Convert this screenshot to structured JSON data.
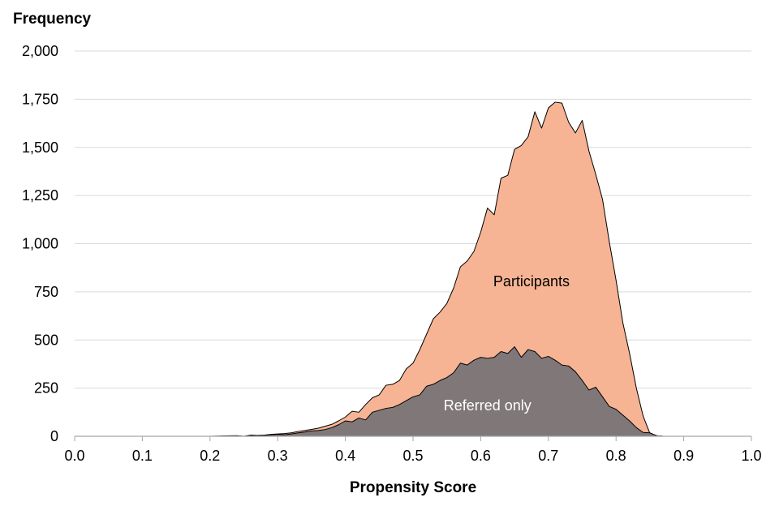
{
  "chart_data": {
    "type": "area",
    "ylabel": "Frequency",
    "xlabel": "Propensity Score",
    "xlim": [
      0.0,
      1.0
    ],
    "ylim": [
      0,
      2000
    ],
    "x_ticks": [
      "0.0",
      "0.1",
      "0.2",
      "0.3",
      "0.4",
      "0.5",
      "0.6",
      "0.7",
      "0.8",
      "0.9",
      "1.0"
    ],
    "y_ticks": [
      "0",
      "250",
      "500",
      "750",
      "1,000",
      "1,250",
      "1,500",
      "1,750",
      "2,000"
    ],
    "grid": true,
    "series": [
      {
        "name": "Participants",
        "color": "#f6b494",
        "label_color": "#000000",
        "label_pos": [
          0.675,
          780
        ],
        "points": [
          [
            0.2,
            0
          ],
          [
            0.22,
            2
          ],
          [
            0.24,
            3
          ],
          [
            0.25,
            0
          ],
          [
            0.26,
            6
          ],
          [
            0.27,
            4
          ],
          [
            0.28,
            6
          ],
          [
            0.29,
            10
          ],
          [
            0.3,
            12
          ],
          [
            0.31,
            14
          ],
          [
            0.32,
            18
          ],
          [
            0.33,
            25
          ],
          [
            0.34,
            30
          ],
          [
            0.35,
            36
          ],
          [
            0.36,
            42
          ],
          [
            0.37,
            52
          ],
          [
            0.38,
            62
          ],
          [
            0.39,
            80
          ],
          [
            0.4,
            100
          ],
          [
            0.41,
            130
          ],
          [
            0.42,
            125
          ],
          [
            0.43,
            165
          ],
          [
            0.44,
            200
          ],
          [
            0.45,
            215
          ],
          [
            0.46,
            265
          ],
          [
            0.47,
            270
          ],
          [
            0.48,
            290
          ],
          [
            0.49,
            350
          ],
          [
            0.5,
            380
          ],
          [
            0.51,
            450
          ],
          [
            0.52,
            530
          ],
          [
            0.53,
            610
          ],
          [
            0.54,
            645
          ],
          [
            0.55,
            690
          ],
          [
            0.56,
            770
          ],
          [
            0.57,
            880
          ],
          [
            0.58,
            910
          ],
          [
            0.59,
            960
          ],
          [
            0.6,
            1060
          ],
          [
            0.61,
            1185
          ],
          [
            0.62,
            1150
          ],
          [
            0.63,
            1340
          ],
          [
            0.64,
            1355
          ],
          [
            0.65,
            1490
          ],
          [
            0.66,
            1510
          ],
          [
            0.67,
            1555
          ],
          [
            0.68,
            1685
          ],
          [
            0.69,
            1600
          ],
          [
            0.7,
            1705
          ],
          [
            0.71,
            1735
          ],
          [
            0.72,
            1730
          ],
          [
            0.73,
            1630
          ],
          [
            0.74,
            1575
          ],
          [
            0.75,
            1640
          ],
          [
            0.76,
            1480
          ],
          [
            0.77,
            1360
          ],
          [
            0.78,
            1230
          ],
          [
            0.79,
            1010
          ],
          [
            0.8,
            810
          ],
          [
            0.81,
            590
          ],
          [
            0.82,
            430
          ],
          [
            0.83,
            250
          ],
          [
            0.84,
            105
          ],
          [
            0.85,
            15
          ],
          [
            0.86,
            3
          ],
          [
            0.87,
            0
          ]
        ]
      },
      {
        "name": "Referred only",
        "color": "#807778",
        "label_color": "#ffffff",
        "label_pos": [
          0.61,
          135
        ],
        "points": [
          [
            0.2,
            0
          ],
          [
            0.22,
            0
          ],
          [
            0.24,
            2
          ],
          [
            0.25,
            0
          ],
          [
            0.26,
            5
          ],
          [
            0.27,
            4
          ],
          [
            0.28,
            5
          ],
          [
            0.29,
            8
          ],
          [
            0.3,
            10
          ],
          [
            0.31,
            8
          ],
          [
            0.32,
            12
          ],
          [
            0.33,
            18
          ],
          [
            0.34,
            22
          ],
          [
            0.35,
            28
          ],
          [
            0.36,
            30
          ],
          [
            0.37,
            35
          ],
          [
            0.38,
            45
          ],
          [
            0.39,
            60
          ],
          [
            0.4,
            80
          ],
          [
            0.41,
            75
          ],
          [
            0.42,
            95
          ],
          [
            0.43,
            85
          ],
          [
            0.44,
            125
          ],
          [
            0.45,
            135
          ],
          [
            0.46,
            145
          ],
          [
            0.47,
            150
          ],
          [
            0.48,
            165
          ],
          [
            0.49,
            185
          ],
          [
            0.5,
            205
          ],
          [
            0.51,
            215
          ],
          [
            0.52,
            260
          ],
          [
            0.53,
            270
          ],
          [
            0.54,
            290
          ],
          [
            0.55,
            305
          ],
          [
            0.56,
            330
          ],
          [
            0.57,
            380
          ],
          [
            0.58,
            370
          ],
          [
            0.59,
            395
          ],
          [
            0.6,
            410
          ],
          [
            0.61,
            405
          ],
          [
            0.62,
            410
          ],
          [
            0.63,
            440
          ],
          [
            0.64,
            430
          ],
          [
            0.65,
            465
          ],
          [
            0.66,
            410
          ],
          [
            0.67,
            450
          ],
          [
            0.68,
            440
          ],
          [
            0.69,
            405
          ],
          [
            0.7,
            415
          ],
          [
            0.71,
            395
          ],
          [
            0.72,
            370
          ],
          [
            0.73,
            365
          ],
          [
            0.74,
            335
          ],
          [
            0.75,
            290
          ],
          [
            0.76,
            240
          ],
          [
            0.77,
            255
          ],
          [
            0.78,
            205
          ],
          [
            0.79,
            155
          ],
          [
            0.8,
            140
          ],
          [
            0.81,
            110
          ],
          [
            0.82,
            80
          ],
          [
            0.83,
            45
          ],
          [
            0.84,
            20
          ],
          [
            0.85,
            18
          ],
          [
            0.86,
            3
          ],
          [
            0.87,
            0
          ]
        ]
      }
    ]
  }
}
